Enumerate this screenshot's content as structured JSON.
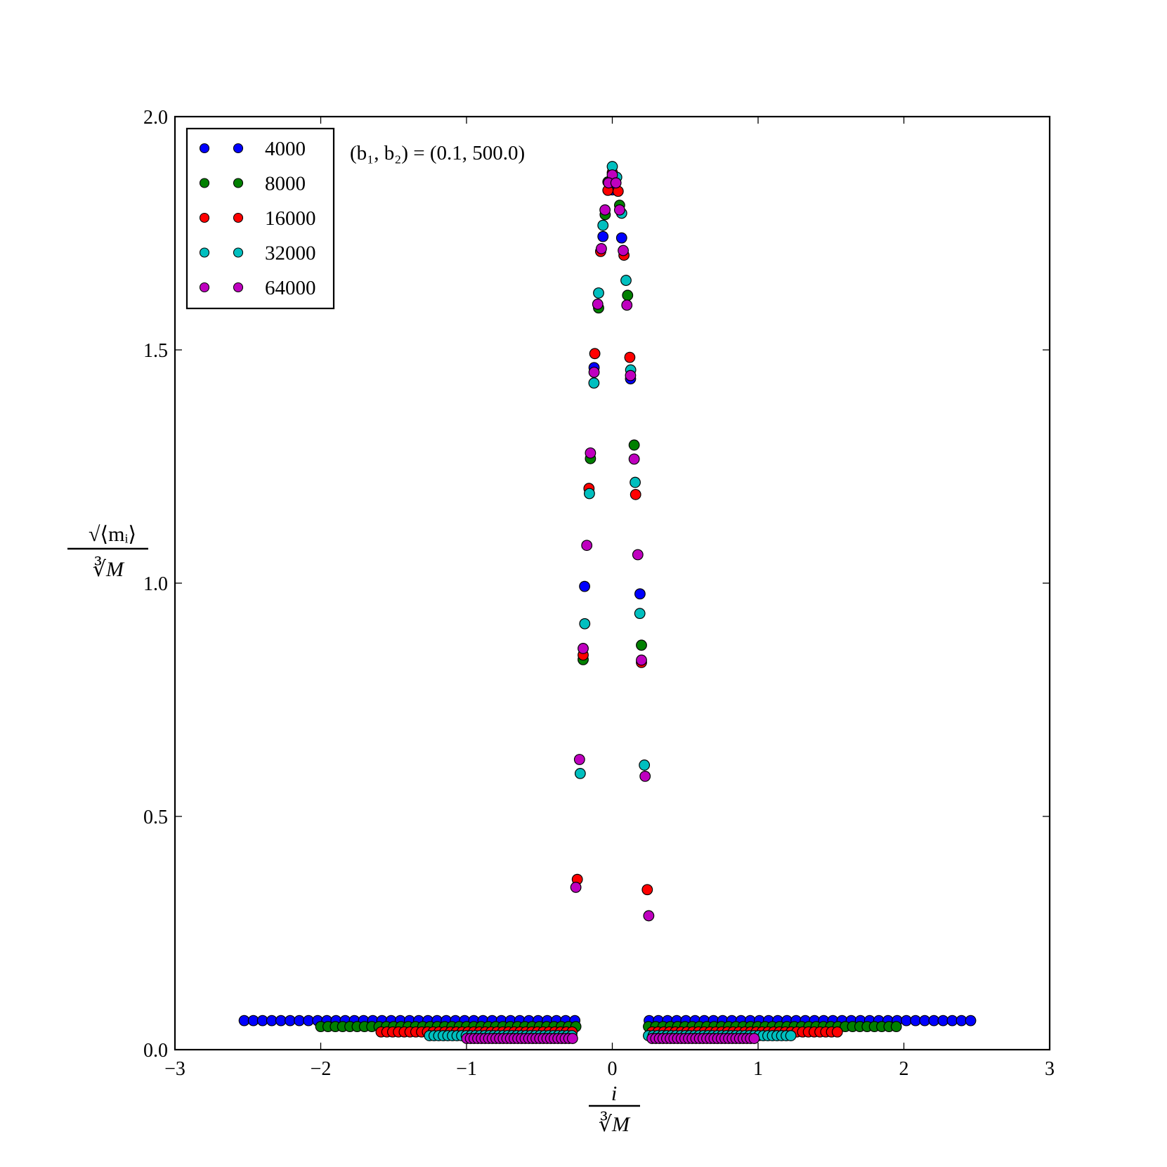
{
  "chart_data": {
    "type": "scatter",
    "title": "",
    "xlabel": "i / ∛M",
    "xlabel_parts": {
      "numerator": "i",
      "denominator": "∛M"
    },
    "ylabel": "√⟨m_i⟩ / ∛M",
    "ylabel_parts": {
      "numerator": "√⟨mᵢ⟩",
      "denominator": "∛M"
    },
    "annotation": "(b₁, b₂) = (0.1, 500.0)",
    "xlim": [
      -3,
      3
    ],
    "ylim": [
      0,
      2.0
    ],
    "xticks": [
      "−3",
      "−2",
      "−1",
      "0",
      "1",
      "2",
      "3"
    ],
    "xtick_values": [
      -3,
      -2,
      -1,
      0,
      1,
      2,
      3
    ],
    "yticks": [
      "0.0",
      "0.5",
      "1.0",
      "1.5",
      "2.0"
    ],
    "ytick_values": [
      0,
      0.5,
      1.0,
      1.5,
      2.0
    ],
    "grid": false,
    "legend_position": "top-left",
    "series": [
      {
        "name": "4000",
        "color": "#0000ff",
        "points": [
          [
            0.0,
            1.843
          ],
          [
            -0.064,
            1.743
          ],
          [
            0.064,
            1.74
          ],
          [
            -0.125,
            1.462
          ],
          [
            0.125,
            1.438
          ],
          [
            -0.19,
            0.993
          ],
          [
            0.19,
            0.977
          ]
        ],
        "flat_runs": [
          {
            "x_from": -2.525,
            "x_to": -0.254,
            "step": 0.063,
            "y": 0.0623
          },
          {
            "x_from": 0.253,
            "x_to": 2.464,
            "step": 0.063,
            "y": 0.0623
          }
        ]
      },
      {
        "name": "8000",
        "color": "#008000",
        "points": [
          [
            -0.03,
            1.86
          ],
          [
            -0.049,
            1.79
          ],
          [
            0.05,
            1.81
          ],
          [
            -0.094,
            1.59
          ],
          [
            0.105,
            1.617
          ],
          [
            -0.15,
            1.267
          ],
          [
            0.15,
            1.296
          ],
          [
            -0.2,
            0.836
          ],
          [
            0.2,
            0.867
          ]
        ],
        "flat_runs": [
          {
            "x_from": -2.0,
            "x_to": -0.243,
            "step": 0.05,
            "y": 0.0495
          },
          {
            "x_from": 0.248,
            "x_to": 1.96,
            "step": 0.05,
            "y": 0.0495
          }
        ]
      },
      {
        "name": "16000",
        "color": "#ff0000",
        "points": [
          [
            0.0,
            1.88
          ],
          [
            -0.03,
            1.842
          ],
          [
            0.04,
            1.84
          ],
          [
            -0.08,
            1.711
          ],
          [
            0.08,
            1.703
          ],
          [
            -0.12,
            1.492
          ],
          [
            0.12,
            1.484
          ],
          [
            -0.16,
            1.203
          ],
          [
            0.16,
            1.19
          ],
          [
            -0.2,
            0.846
          ],
          [
            0.2,
            0.83
          ],
          [
            -0.24,
            0.365
          ],
          [
            0.24,
            0.343
          ]
        ],
        "flat_runs": [
          {
            "x_from": -1.586,
            "x_to": -0.268,
            "step": 0.0397,
            "y": 0.038
          },
          {
            "x_from": 0.273,
            "x_to": 1.556,
            "step": 0.0397,
            "y": 0.038
          }
        ]
      },
      {
        "name": "32000",
        "color": "#00bfbf",
        "points": [
          [
            0.0,
            1.893
          ],
          [
            0.03,
            1.87
          ],
          [
            -0.064,
            1.767
          ],
          [
            0.064,
            1.793
          ],
          [
            -0.094,
            1.622
          ],
          [
            0.094,
            1.649
          ],
          [
            -0.126,
            1.429
          ],
          [
            0.126,
            1.457
          ],
          [
            -0.157,
            1.192
          ],
          [
            0.157,
            1.216
          ],
          [
            -0.189,
            0.913
          ],
          [
            0.189,
            0.935
          ],
          [
            -0.22,
            0.592
          ],
          [
            0.22,
            0.61
          ]
        ],
        "flat_runs": [
          {
            "x_from": -1.254,
            "x_to": -0.248,
            "step": 0.0315,
            "y": 0.03
          },
          {
            "x_from": 0.248,
            "x_to": 1.233,
            "step": 0.0315,
            "y": 0.03
          }
        ]
      },
      {
        "name": "64000",
        "color": "#bf00bf",
        "points": [
          [
            0.0,
            1.875
          ],
          [
            -0.025,
            1.858
          ],
          [
            0.025,
            1.858
          ],
          [
            -0.05,
            1.8
          ],
          [
            0.05,
            1.8
          ],
          [
            -0.075,
            1.717
          ],
          [
            0.075,
            1.713
          ],
          [
            -0.1,
            1.598
          ],
          [
            0.1,
            1.596
          ],
          [
            -0.125,
            1.452
          ],
          [
            0.125,
            1.445
          ],
          [
            -0.15,
            1.279
          ],
          [
            0.15,
            1.266
          ],
          [
            -0.175,
            1.081
          ],
          [
            0.175,
            1.061
          ],
          [
            -0.2,
            0.86
          ],
          [
            0.2,
            0.835
          ],
          [
            -0.225,
            0.622
          ],
          [
            0.225,
            0.586
          ],
          [
            -0.25,
            0.348
          ],
          [
            0.25,
            0.287
          ]
        ],
        "flat_runs": [
          {
            "x_from": -0.998,
            "x_to": -0.268,
            "step": 0.025,
            "y": 0.024
          },
          {
            "x_from": 0.273,
            "x_to": 0.993,
            "step": 0.025,
            "y": 0.024
          }
        ]
      }
    ]
  }
}
